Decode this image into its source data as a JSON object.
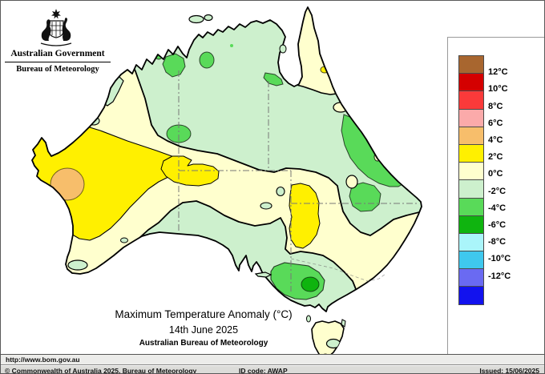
{
  "header": {
    "government": "Australian Government",
    "bureau": "Bureau of Meteorology"
  },
  "title_block": {
    "title": "Maximum Temperature Anomaly (°C)",
    "date": "14th June 2025",
    "organisation": "Australian Bureau of Meteorology"
  },
  "legend": {
    "unit": "°C",
    "labels": [
      "12°C",
      "10°C",
      "8°C",
      "6°C",
      "4°C",
      "2°C",
      "0°C",
      "-2°C",
      "-4°C",
      "-6°C",
      "-8°C",
      "-10°C",
      "-12°C"
    ],
    "colors": [
      "#A8662F",
      "#D40000",
      "#FA3A3A",
      "#FBAAAA",
      "#F7BE6B",
      "#FFF000",
      "#FFFFCE",
      "#CDF0CD",
      "#59DA59",
      "#0FB40F",
      "#AAF5FA",
      "#3FC8EE",
      "#6A6AF2",
      "#1212EE"
    ]
  },
  "map_data": {
    "type": "filled-contour anomaly map of Australia",
    "anomaly_regions": [
      {
        "area": "central and northwest Western Australia",
        "band_c": "+2 to +4",
        "core_c": "+4 to +6"
      },
      {
        "area": "northeast SA / NT corner inland blob",
        "band_c": "+2 to +4"
      },
      {
        "area": "NE South Australia to western NSW border blob",
        "band_c": "+2 to +4"
      },
      {
        "area": "top end NT, inland Queensland, eastern interior",
        "band_c": "0 to -2"
      },
      {
        "area": "scattered NT patches and central Queensland coast",
        "band_c": "-2 to -4"
      },
      {
        "area": "northern NSW inland patch",
        "band_c": "-2 to -4"
      },
      {
        "area": "western Victoria / southeast SA",
        "band_c": "-2 to -4",
        "core_c": "-4 to -6"
      },
      {
        "area": "Cape York Peninsula, central NSW band, southern WA, Tasmania",
        "band_c": "0 to +2"
      },
      {
        "area": "Nullarbor coast strip and SA gulfs",
        "band_c": "0 to -2"
      }
    ]
  },
  "footer": {
    "url": "http://www.bom.gov.au",
    "copyright": "© Commonwealth of Australia 2025, Bureau of Meteorology",
    "id_code": "ID code: AWAP",
    "issued": "Issued: 15/06/2025"
  }
}
